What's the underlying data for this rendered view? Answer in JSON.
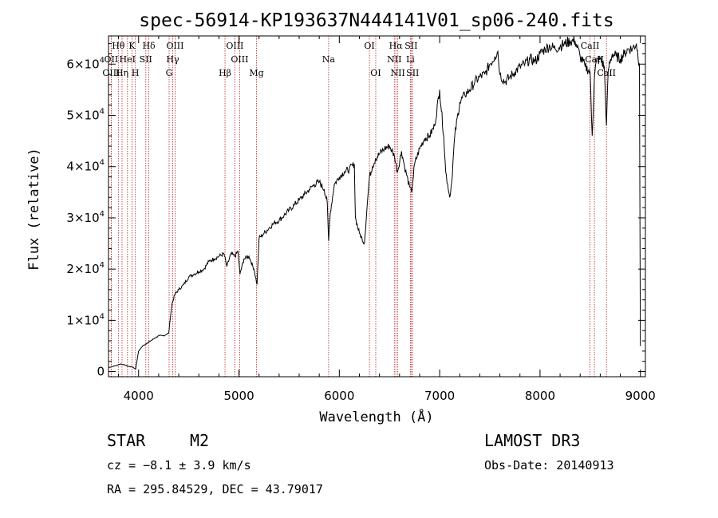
{
  "chart_data": {
    "type": "line",
    "title": "spec-56914-KP193637N444141V01_sp06-240.fits",
    "xlabel": "Wavelength (Å)",
    "ylabel": "Flux (relative)",
    "xlim": [
      3700,
      9050
    ],
    "ylim": [
      -1000,
      65500
    ],
    "x_ticks": [
      4000,
      5000,
      6000,
      7000,
      8000,
      9000
    ],
    "y_ticks": [
      {
        "value": 0,
        "mantissa": "0",
        "exp": ""
      },
      {
        "value": 10000,
        "mantissa": "1×10",
        "exp": "4"
      },
      {
        "value": 20000,
        "mantissa": "2×10",
        "exp": "4"
      },
      {
        "value": 30000,
        "mantissa": "3×10",
        "exp": "4"
      },
      {
        "value": 40000,
        "mantissa": "4×10",
        "exp": "4"
      },
      {
        "value": 50000,
        "mantissa": "5×10",
        "exp": "4"
      },
      {
        "value": 60000,
        "mantissa": "6×10",
        "exp": "4"
      }
    ],
    "series": [
      {
        "name": "spectrum",
        "x": [
          3700,
          3740,
          3780,
          3820,
          3860,
          3900,
          3940,
          3970,
          4000,
          4040,
          4080,
          4120,
          4160,
          4200,
          4250,
          4300,
          4330,
          4360,
          4400,
          4450,
          4500,
          4550,
          4600,
          4650,
          4700,
          4750,
          4800,
          4850,
          4880,
          4920,
          4960,
          4990,
          5010,
          5050,
          5100,
          5150,
          5180,
          5200,
          5250,
          5300,
          5350,
          5400,
          5450,
          5500,
          5550,
          5600,
          5650,
          5700,
          5750,
          5800,
          5850,
          5880,
          5893,
          5910,
          5950,
          6000,
          6050,
          6100,
          6150,
          6160,
          6200,
          6250,
          6280,
          6300,
          6330,
          6360,
          6400,
          6450,
          6500,
          6550,
          6580,
          6620,
          6650,
          6700,
          6720,
          6750,
          6800,
          6850,
          6900,
          6950,
          7000,
          7040,
          7060,
          7080,
          7100,
          7120,
          7150,
          7200,
          7250,
          7300,
          7350,
          7400,
          7450,
          7500,
          7550,
          7580,
          7600,
          7650,
          7700,
          7750,
          7800,
          7850,
          7900,
          7950,
          8000,
          8050,
          8100,
          8150,
          8200,
          8250,
          8300,
          8350,
          8400,
          8450,
          8498,
          8520,
          8542,
          8560,
          8600,
          8640,
          8662,
          8680,
          8720,
          8760,
          8800,
          8840,
          8880,
          8920,
          8960,
          8990,
          9000
        ],
        "y": [
          800,
          1000,
          1200,
          1500,
          1300,
          1000,
          900,
          500,
          4000,
          5000,
          5500,
          6000,
          6500,
          7000,
          7000,
          7500,
          13000,
          15000,
          16000,
          17000,
          18500,
          19000,
          19500,
          20000,
          21500,
          22000,
          22500,
          23000,
          20500,
          23000,
          22500,
          23500,
          19000,
          22000,
          22500,
          20000,
          17000,
          26000,
          27000,
          28000,
          29000,
          29500,
          30500,
          31500,
          32500,
          33500,
          34500,
          35500,
          36500,
          37000,
          35500,
          33000,
          25500,
          31000,
          36500,
          38000,
          39000,
          39500,
          40500,
          30000,
          27000,
          25000,
          33000,
          38000,
          40000,
          41500,
          42500,
          43500,
          44000,
          42000,
          39000,
          43000,
          40000,
          36000,
          35000,
          40500,
          43500,
          45500,
          46000,
          48000,
          55000,
          46000,
          39000,
          36500,
          34000,
          37000,
          46000,
          52500,
          54000,
          55000,
          56500,
          57500,
          58000,
          60000,
          61500,
          62500,
          58000,
          56500,
          57500,
          58500,
          59500,
          60000,
          61000,
          60500,
          62000,
          63000,
          63500,
          63000,
          63500,
          64000,
          64500,
          64500,
          61500,
          59500,
          58500,
          46000,
          57500,
          60500,
          61000,
          59500,
          48000,
          59000,
          62000,
          61500,
          61000,
          62000,
          63000,
          63000,
          64000,
          60000,
          5000
        ]
      }
    ],
    "emission_lines": [
      {
        "name": "Hθ",
        "wavelength": 3798,
        "row": 0
      },
      {
        "name": "K",
        "wavelength": 3934,
        "row": 0
      },
      {
        "name": "Hδ",
        "wavelength": 4102,
        "row": 0
      },
      {
        "name": "OIII",
        "wavelength": 4363,
        "row": 0
      },
      {
        "name": "OIII",
        "wavelength": 4959,
        "row": 0
      },
      {
        "name": "OI",
        "wavelength": 6300,
        "row": 0
      },
      {
        "name": "Hα",
        "wavelength": 6563,
        "row": 0
      },
      {
        "name": "SII",
        "wavelength": 6716,
        "row": 0
      },
      {
        "name": "CaII",
        "wavelength": 8498,
        "row": 0
      },
      {
        "name": "OII",
        "wavelength": 3727,
        "row": 1
      },
      {
        "name": "HeI",
        "wavelength": 3889,
        "row": 1
      },
      {
        "name": "SII",
        "wavelength": 4072,
        "row": 1
      },
      {
        "name": "Hγ",
        "wavelength": 4340,
        "row": 1
      },
      {
        "name": "OIII",
        "wavelength": 5007,
        "row": 1
      },
      {
        "name": "NII",
        "wavelength": 6548,
        "row": 1
      },
      {
        "name": "Li",
        "wavelength": 6708,
        "row": 1
      },
      {
        "name": "CaII",
        "wavelength": 8542,
        "row": 1
      },
      {
        "name": "OIII",
        "wavelength": 3727,
        "row": 2
      },
      {
        "name": "Hη",
        "wavelength": 3835,
        "row": 2
      },
      {
        "name": "H",
        "wavelength": 3968,
        "row": 2
      },
      {
        "name": "G",
        "wavelength": 4304,
        "row": 2
      },
      {
        "name": "Hβ",
        "wavelength": 4861,
        "row": 2
      },
      {
        "name": "Mg",
        "wavelength": 5175,
        "row": 2
      },
      {
        "name": "Na",
        "wavelength": 5893,
        "row": 1
      },
      {
        "name": "OI",
        "wavelength": 6363,
        "row": 2
      },
      {
        "name": "NII",
        "wavelength": 6583,
        "row": 2
      },
      {
        "name": "SII",
        "wavelength": 6731,
        "row": 2
      },
      {
        "name": "CaII",
        "wavelength": 8662,
        "row": 2
      }
    ]
  },
  "info": {
    "object_type": "STAR",
    "subclass": "M2",
    "survey": "LAMOST DR3",
    "cz": "cz = −8.1 ± 3.9 km/s",
    "obs_date": "Obs-Date: 20140913",
    "radec": "RA = 295.84529, DEC =  43.79017"
  }
}
